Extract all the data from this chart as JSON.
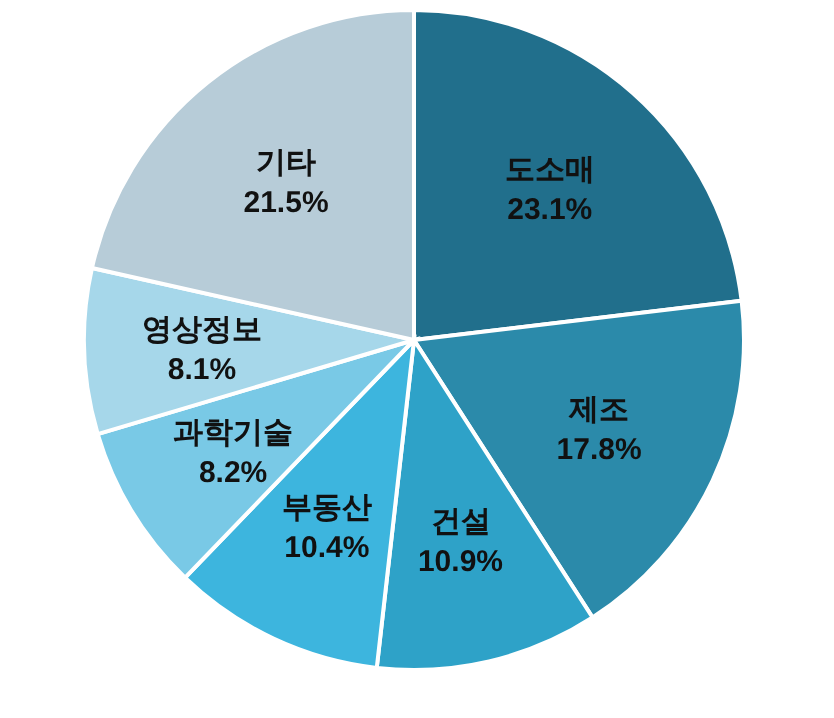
{
  "chart_data": {
    "type": "pie",
    "categories": [
      "도소매",
      "제조",
      "건설",
      "부동산",
      "과학기술",
      "영상정보",
      "기타"
    ],
    "values": [
      23.1,
      17.8,
      10.9,
      10.4,
      8.2,
      8.1,
      21.5
    ],
    "colors": [
      "#216f8c",
      "#2b8aaa",
      "#2ea2c8",
      "#3db5de",
      "#79c9e6",
      "#a6d7ea",
      "#b7ccd8"
    ],
    "value_labels": [
      "23.1%",
      "17.8%",
      "10.9%",
      "10.4%",
      "8.2%",
      "8.1%",
      "21.5%"
    ]
  }
}
